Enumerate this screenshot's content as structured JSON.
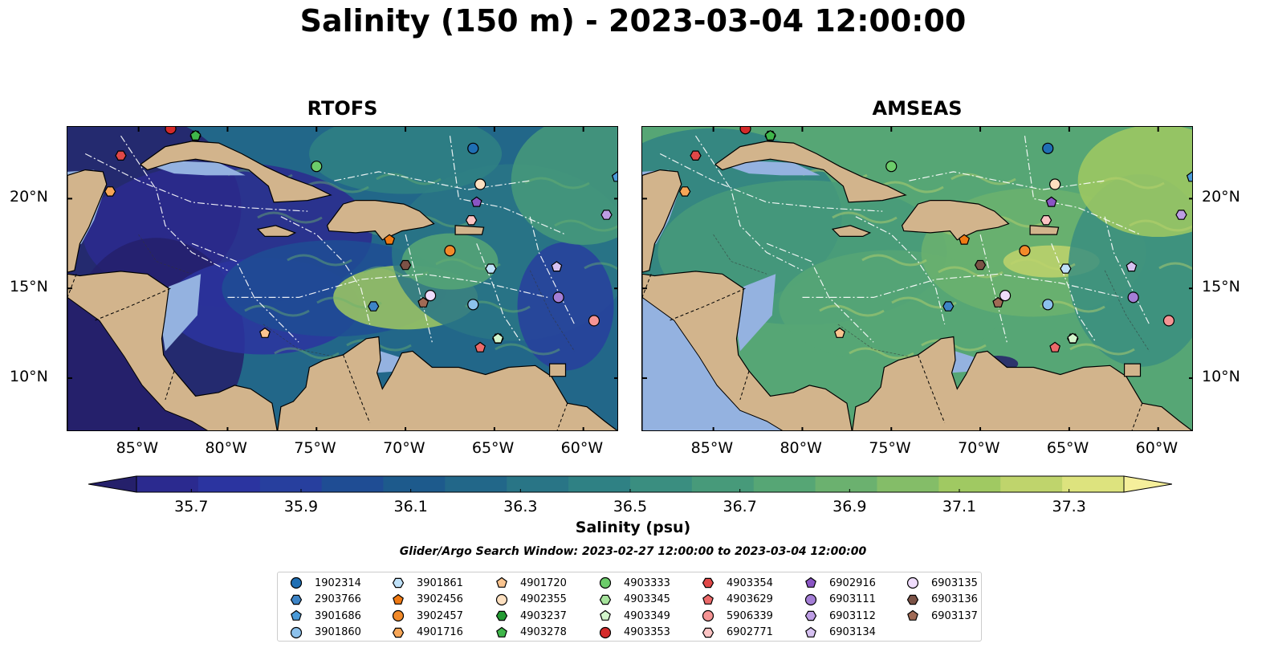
{
  "title": "Salinity (150 m) - 2023-03-04 12:00:00",
  "panels": [
    {
      "title": "RTOFS"
    },
    {
      "title": "AMSEAS"
    }
  ],
  "axes": {
    "lon_ticks": [
      "85°W",
      "80°W",
      "75°W",
      "70°W",
      "65°W",
      "60°W"
    ],
    "lat_ticks": [
      "20°N",
      "15°N",
      "10°N"
    ]
  },
  "colorbar": {
    "title": "Salinity (psu)",
    "tick_labels": [
      "35.7",
      "35.9",
      "36.1",
      "36.3",
      "36.5",
      "36.7",
      "36.9",
      "37.1",
      "37.3"
    ],
    "colors": [
      "#25206b",
      "#2b2a8f",
      "#2b34a0",
      "#273f9e",
      "#1f4d94",
      "#1d5a8c",
      "#226789",
      "#297586",
      "#2f8184",
      "#3a8e80",
      "#479a7a",
      "#56a675",
      "#6bb16f",
      "#84bd68",
      "#a0c962",
      "#bfd46c",
      "#dde37e",
      "#f5ef9b"
    ]
  },
  "search_window": "Glider/Argo Search Window: 2023-02-27 12:00:00 to 2023-03-04 12:00:00",
  "legend": [
    {
      "label": "1902314",
      "marker": "circle",
      "color": "#1f6fb4"
    },
    {
      "label": "2903766",
      "marker": "hexagon",
      "color": "#3d84c6"
    },
    {
      "label": "3901686",
      "marker": "pentagon",
      "color": "#4a9ad8"
    },
    {
      "label": "3901860",
      "marker": "circle",
      "color": "#8cc1ec"
    },
    {
      "label": "3901861",
      "marker": "hexagon",
      "color": "#bfe1f8"
    },
    {
      "label": "3902456",
      "marker": "pentagon",
      "color": "#f07a13"
    },
    {
      "label": "3902457",
      "marker": "circle",
      "color": "#f28a2a"
    },
    {
      "label": "4901716",
      "marker": "hexagon",
      "color": "#f7a657"
    },
    {
      "label": "4901720",
      "marker": "pentagon",
      "color": "#fac48f"
    },
    {
      "label": "4902355",
      "marker": "circle",
      "color": "#fde0c0"
    },
    {
      "label": "4903237",
      "marker": "hexagon",
      "color": "#239a32"
    },
    {
      "label": "4903278",
      "marker": "pentagon",
      "color": "#3fb64a"
    },
    {
      "label": "4903333",
      "marker": "circle",
      "color": "#6ccc6a"
    },
    {
      "label": "4903345",
      "marker": "hexagon",
      "color": "#a6e39c"
    },
    {
      "label": "4903349",
      "marker": "pentagon",
      "color": "#d3f5cc"
    },
    {
      "label": "4903353",
      "marker": "circle",
      "color": "#d42a2a"
    },
    {
      "label": "4903354",
      "marker": "hexagon",
      "color": "#e04848"
    },
    {
      "label": "4903629",
      "marker": "pentagon",
      "color": "#ec6a6a"
    },
    {
      "label": "5906339",
      "marker": "circle",
      "color": "#f59494"
    },
    {
      "label": "6902771",
      "marker": "hexagon",
      "color": "#fbc3c3"
    },
    {
      "label": "6902916",
      "marker": "pentagon",
      "color": "#8a55c4"
    },
    {
      "label": "6903111",
      "marker": "circle",
      "color": "#a47ed6"
    },
    {
      "label": "6903112",
      "marker": "hexagon",
      "color": "#bd9de4"
    },
    {
      "label": "6903134",
      "marker": "pentagon",
      "color": "#d6c1f1"
    },
    {
      "label": "6903135",
      "marker": "circle",
      "color": "#efdcfc"
    },
    {
      "label": "6903136",
      "marker": "hexagon",
      "color": "#7b5246"
    },
    {
      "label": "6903137",
      "marker": "pentagon",
      "color": "#a06a55"
    }
  ],
  "chart_data": [
    {
      "type": "heatmap",
      "title": "RTOFS",
      "variable": "Salinity",
      "units": "psu",
      "depth": "150 m",
      "lon_range": [
        -89,
        -58
      ],
      "lat_range": [
        7,
        24
      ],
      "color_range": [
        35.6,
        37.4
      ],
      "dominant_range": "35.7-36.5 (low salinity west/Gulf of Honduras, higher in east Caribbean)"
    },
    {
      "type": "heatmap",
      "title": "AMSEAS",
      "variable": "Salinity",
      "units": "psu",
      "depth": "150 m",
      "lon_range": [
        -89,
        -58
      ],
      "lat_range": [
        7,
        24
      ],
      "color_range": [
        35.6,
        37.4
      ],
      "dominant_range": "36.5-37.1 (mostly green across Caribbean)"
    }
  ],
  "floats": [
    {
      "id": "1902314",
      "lon": -66.2,
      "lat": 22.8
    },
    {
      "id": "2903766",
      "lon": -71.8,
      "lat": 14.0
    },
    {
      "id": "3901686",
      "lon": -58.1,
      "lat": 21.2
    },
    {
      "id": "3901860",
      "lon": -66.2,
      "lat": 14.1
    },
    {
      "id": "3901861",
      "lon": -65.2,
      "lat": 16.1
    },
    {
      "id": "3902456",
      "lon": -70.9,
      "lat": 17.7
    },
    {
      "id": "3902457",
      "lon": -67.5,
      "lat": 17.1
    },
    {
      "id": "4901716",
      "lon": -86.6,
      "lat": 20.4
    },
    {
      "id": "4901720",
      "lon": -77.9,
      "lat": 12.5
    },
    {
      "id": "4902355",
      "lon": -65.8,
      "lat": 20.8
    },
    {
      "id": "4903237",
      "lon": -81.8,
      "lat": 23.5
    },
    {
      "id": "4903278",
      "lon": -81.8,
      "lat": 23.5
    },
    {
      "id": "4903333",
      "lon": -75.0,
      "lat": 21.8
    },
    {
      "id": "4903345",
      "lon": -64.8,
      "lat": 12.2
    },
    {
      "id": "4903349",
      "lon": -64.8,
      "lat": 12.2
    },
    {
      "id": "4903353",
      "lon": -83.2,
      "lat": 23.9
    },
    {
      "id": "4903354",
      "lon": -86.0,
      "lat": 22.4
    },
    {
      "id": "4903629",
      "lon": -65.8,
      "lat": 11.7
    },
    {
      "id": "5906339",
      "lon": -59.4,
      "lat": 13.2
    },
    {
      "id": "6902771",
      "lon": -66.3,
      "lat": 18.8
    },
    {
      "id": "6902916",
      "lon": -66.0,
      "lat": 19.8
    },
    {
      "id": "6903111",
      "lon": -61.4,
      "lat": 14.5
    },
    {
      "id": "6903112",
      "lon": -58.7,
      "lat": 19.1
    },
    {
      "id": "6903134",
      "lon": -61.5,
      "lat": 16.2
    },
    {
      "id": "6903135",
      "lon": -68.6,
      "lat": 14.6
    },
    {
      "id": "6903136",
      "lon": -70.0,
      "lat": 16.3
    },
    {
      "id": "6903137",
      "lon": -69.0,
      "lat": 14.2
    }
  ]
}
